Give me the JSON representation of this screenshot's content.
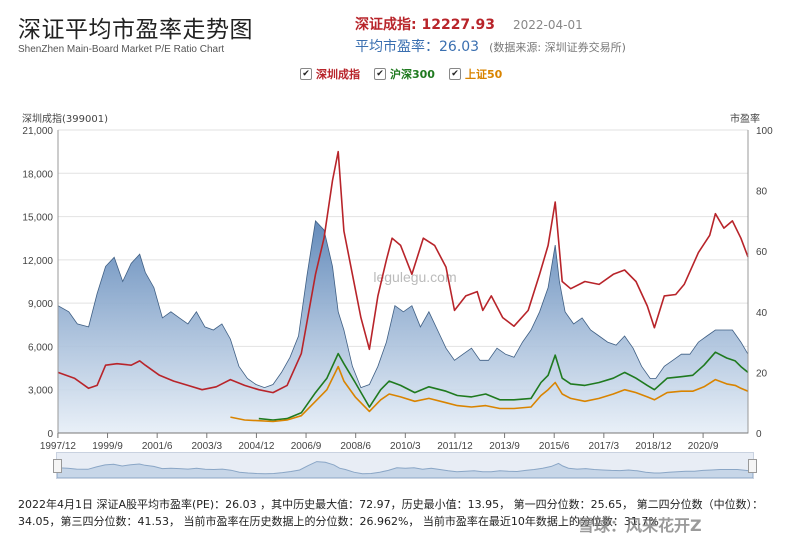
{
  "header": {
    "title": "深证平均市盈率走势图",
    "subtitle": "ShenZhen Main-Board Market P/E Ratio Chart",
    "index_label": "深证成指: 12227.93",
    "date": "2022-04-01",
    "pe_label": "平均市盈率：26.03",
    "source": "(数据来源: 深圳证券交易所)"
  },
  "legend": [
    {
      "label": "深圳成指",
      "color": "#b8242a"
    },
    {
      "label": "沪深300",
      "color": "#1f7a1f"
    },
    {
      "label": "上证50",
      "color": "#d98400"
    }
  ],
  "axes": {
    "left_title": "深圳成指(399001)",
    "right_title": "市盈率",
    "watermark": "legulegu.com"
  },
  "footer": {
    "text": "2022年4月1日  深证A股平均市盈率(PE)：26.03 ，其中历史最大值：72.97，历史最小值：13.95， 第一四分位数：25.65， 第二四分位数（中位数）：34.05，第三四分位数：41.53， 当前市盈率在历史数据上的分位数：26.962%， 当前市盈率在最近10年数据上的分位数：31.7%",
    "watermark": "雪球：风来花开Z"
  },
  "chart_data": {
    "type": "line",
    "x_ticks": [
      "1997/12",
      "1999/9",
      "2001/6",
      "2003/3",
      "2004/12",
      "2006/9",
      "2008/6",
      "2010/3",
      "2011/12",
      "2013/9",
      "2015/6",
      "2017/3",
      "2018/12",
      "2020/9"
    ],
    "x_range": [
      1997.92,
      2022.25
    ],
    "y_left": {
      "title": "深圳成指(399001)",
      "range": [
        0,
        21000
      ],
      "ticks": [
        "0",
        "3,000",
        "6,000",
        "9,000",
        "12,000",
        "15,000",
        "18,000",
        "21,000"
      ]
    },
    "y_right": {
      "title": "市盈率",
      "range": [
        0,
        100
      ],
      "ticks": [
        "0",
        "20",
        "40",
        "60",
        "80",
        "100"
      ]
    },
    "series": [
      {
        "name": "市盈率",
        "axis": "right",
        "kind": "area",
        "color": "#7fa6cc",
        "x": [
          1997.92,
          1998.3,
          1998.6,
          1999.0,
          1999.3,
          1999.6,
          1999.9,
          2000.2,
          2000.5,
          2000.8,
          2001.0,
          2001.3,
          2001.6,
          2001.9,
          2002.2,
          2002.5,
          2002.8,
          2003.1,
          2003.4,
          2003.7,
          2004.0,
          2004.3,
          2004.6,
          2004.9,
          2005.2,
          2005.5,
          2005.8,
          2006.1,
          2006.4,
          2006.7,
          2007.0,
          2007.3,
          2007.6,
          2007.8,
          2008.0,
          2008.3,
          2008.6,
          2008.9,
          2009.2,
          2009.5,
          2009.8,
          2010.1,
          2010.4,
          2010.7,
          2011.0,
          2011.3,
          2011.6,
          2011.9,
          2012.2,
          2012.5,
          2012.8,
          2013.1,
          2013.4,
          2013.7,
          2014.0,
          2014.3,
          2014.6,
          2014.9,
          2015.2,
          2015.45,
          2015.6,
          2015.8,
          2016.1,
          2016.4,
          2016.7,
          2017.0,
          2017.3,
          2017.6,
          2017.9,
          2018.2,
          2018.5,
          2018.8,
          2019.0,
          2019.3,
          2019.6,
          2019.9,
          2020.2,
          2020.5,
          2020.8,
          2021.1,
          2021.4,
          2021.7,
          2022.0,
          2022.25
        ],
        "y": [
          42,
          40,
          36,
          35,
          46,
          55,
          58,
          50,
          56,
          59,
          53,
          48,
          38,
          40,
          38,
          36,
          40,
          35,
          34,
          36,
          31,
          22,
          18,
          16,
          15,
          16,
          20,
          25,
          32,
          52,
          70,
          67,
          55,
          40,
          34,
          22,
          15,
          16,
          22,
          30,
          42,
          40,
          42,
          35,
          40,
          34,
          28,
          24,
          26,
          28,
          24,
          24,
          28,
          26,
          25,
          30,
          34,
          40,
          48,
          62,
          50,
          40,
          36,
          38,
          34,
          32,
          30,
          29,
          32,
          28,
          22,
          18,
          18,
          22,
          24,
          26,
          26,
          30,
          32,
          34,
          34,
          34,
          30,
          26
        ]
      },
      {
        "name": "深圳成指",
        "axis": "left",
        "kind": "line",
        "color": "#b8242a",
        "x": [
          1997.92,
          1998.5,
          1999.0,
          1999.3,
          1999.6,
          2000.0,
          2000.5,
          2000.8,
          2001.0,
          2001.5,
          2002.0,
          2002.5,
          2003.0,
          2003.5,
          2004.0,
          2004.5,
          2005.0,
          2005.5,
          2006.0,
          2006.5,
          2007.0,
          2007.3,
          2007.6,
          2007.8,
          2008.0,
          2008.3,
          2008.6,
          2008.9,
          2009.2,
          2009.5,
          2009.7,
          2010.0,
          2010.4,
          2010.8,
          2011.2,
          2011.6,
          2011.9,
          2012.3,
          2012.7,
          2012.9,
          2013.2,
          2013.6,
          2014.0,
          2014.5,
          2014.9,
          2015.2,
          2015.45,
          2015.7,
          2016.0,
          2016.5,
          2017.0,
          2017.5,
          2017.9,
          2018.3,
          2018.7,
          2018.95,
          2019.3,
          2019.7,
          2020.0,
          2020.5,
          2020.9,
          2021.1,
          2021.4,
          2021.7,
          2022.0,
          2022.25
        ],
        "y": [
          4200,
          3800,
          3100,
          3300,
          4700,
          4800,
          4700,
          5000,
          4700,
          4000,
          3600,
          3300,
          3000,
          3200,
          3700,
          3300,
          3000,
          2800,
          3300,
          5500,
          11000,
          13500,
          17500,
          19500,
          14000,
          11000,
          8000,
          5800,
          9500,
          12000,
          13500,
          13000,
          11000,
          13500,
          13000,
          11500,
          8500,
          9500,
          9800,
          8500,
          9500,
          8000,
          7400,
          8500,
          11000,
          13000,
          16000,
          10500,
          10000,
          10500,
          10300,
          11000,
          11300,
          10500,
          8800,
          7300,
          9500,
          9600,
          10300,
          12500,
          13700,
          15200,
          14200,
          14700,
          13500,
          12200
        ]
      },
      {
        "name": "沪深300",
        "axis": "left",
        "kind": "line",
        "color": "#1f7a1f",
        "x": [
          2005.0,
          2005.5,
          2006.0,
          2006.5,
          2007.0,
          2007.4,
          2007.8,
          2008.0,
          2008.4,
          2008.9,
          2009.3,
          2009.6,
          2010.0,
          2010.5,
          2011.0,
          2011.6,
          2012.0,
          2012.5,
          2013.0,
          2013.5,
          2014.0,
          2014.6,
          2014.95,
          2015.2,
          2015.45,
          2015.7,
          2016.0,
          2016.5,
          2017.0,
          2017.5,
          2017.9,
          2018.3,
          2018.7,
          2018.95,
          2019.4,
          2019.9,
          2020.3,
          2020.7,
          2021.1,
          2021.5,
          2021.8,
          2022.0,
          2022.25
        ],
        "y": [
          1000,
          900,
          1000,
          1400,
          2800,
          3800,
          5500,
          4800,
          3500,
          1800,
          3000,
          3600,
          3300,
          2800,
          3200,
          2900,
          2600,
          2500,
          2700,
          2300,
          2300,
          2400,
          3500,
          4000,
          5400,
          3800,
          3400,
          3300,
          3500,
          3800,
          4200,
          3800,
          3300,
          3000,
          3800,
          3900,
          4000,
          4700,
          5600,
          5200,
          5000,
          4600,
          4200
        ]
      },
      {
        "name": "上证50",
        "axis": "left",
        "kind": "line",
        "color": "#d98400",
        "x": [
          2004.0,
          2004.5,
          2005.0,
          2005.5,
          2006.0,
          2006.5,
          2007.0,
          2007.4,
          2007.8,
          2008.0,
          2008.4,
          2008.9,
          2009.3,
          2009.6,
          2010.0,
          2010.5,
          2011.0,
          2011.6,
          2012.0,
          2012.5,
          2013.0,
          2013.5,
          2014.0,
          2014.6,
          2014.95,
          2015.2,
          2015.45,
          2015.7,
          2016.0,
          2016.5,
          2017.0,
          2017.5,
          2017.9,
          2018.3,
          2018.7,
          2018.95,
          2019.4,
          2019.9,
          2020.3,
          2020.7,
          2021.1,
          2021.5,
          2021.8,
          2022.0,
          2022.25
        ],
        "y": [
          1100,
          900,
          850,
          800,
          900,
          1200,
          2200,
          3000,
          4600,
          3600,
          2500,
          1500,
          2300,
          2700,
          2500,
          2200,
          2400,
          2100,
          1900,
          1800,
          1900,
          1700,
          1700,
          1800,
          2600,
          3000,
          3500,
          2700,
          2400,
          2200,
          2400,
          2700,
          3000,
          2800,
          2500,
          2300,
          2800,
          2900,
          2900,
          3200,
          3700,
          3400,
          3300,
          3100,
          2900
        ]
      }
    ]
  }
}
